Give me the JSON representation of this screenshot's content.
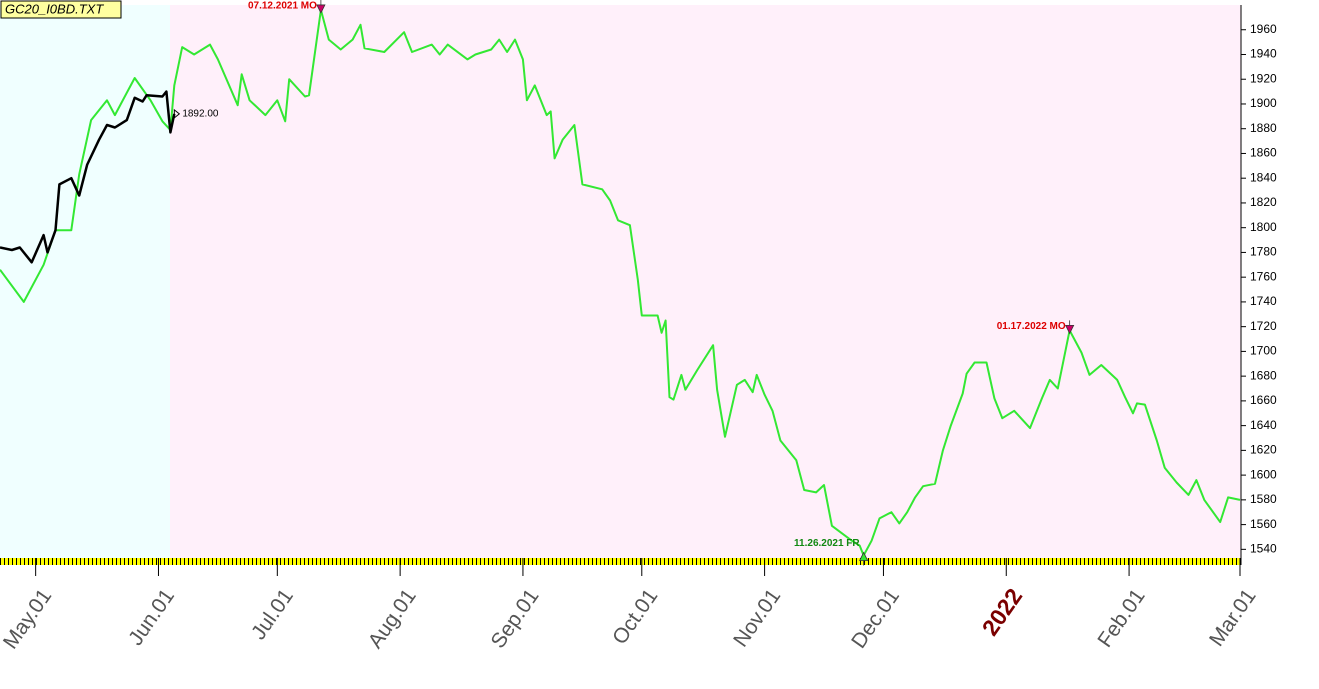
{
  "chart_data": {
    "type": "line",
    "title": "GC20_I0BD.TXT",
    "xlim": [
      "2021-04-22",
      "2022-03-01"
    ],
    "ylim": [
      1533,
      1980
    ],
    "yticks": [
      1540,
      1560,
      1580,
      1600,
      1620,
      1640,
      1660,
      1680,
      1700,
      1720,
      1740,
      1760,
      1780,
      1800,
      1820,
      1840,
      1860,
      1880,
      1900,
      1920,
      1940,
      1960
    ],
    "xticks": [
      {
        "value": "2021-05-01",
        "label": "May.01"
      },
      {
        "value": "2021-06-01",
        "label": "Jun.01"
      },
      {
        "value": "2021-07-01",
        "label": "Jul.01"
      },
      {
        "value": "2021-08-01",
        "label": "Aug.01"
      },
      {
        "value": "2021-09-01",
        "label": "Sep.01"
      },
      {
        "value": "2021-10-01",
        "label": "Oct.01"
      },
      {
        "value": "2021-11-01",
        "label": "Nov.01"
      },
      {
        "value": "2021-12-01",
        "label": "Dec.01"
      },
      {
        "value": "2022-01-01",
        "label": "2022"
      },
      {
        "value": "2022-02-01",
        "label": "Feb.01"
      },
      {
        "value": "2022-03-01",
        "label": "Mar.01"
      }
    ],
    "series": [
      {
        "color": "#33e833",
        "x": [
          "2021-04-22",
          "2021-04-28",
          "2021-05-03",
          "2021-05-06",
          "2021-05-10",
          "2021-05-12",
          "2021-05-15",
          "2021-05-19",
          "2021-05-21",
          "2021-05-26",
          "2021-05-30",
          "2021-06-02",
          "2021-06-04",
          "2021-06-05",
          "2021-06-07",
          "2021-06-10",
          "2021-06-14",
          "2021-06-16",
          "2021-06-21",
          "2021-06-22",
          "2021-06-24",
          "2021-06-28",
          "2021-07-01",
          "2021-07-03",
          "2021-07-04",
          "2021-07-08",
          "2021-07-09",
          "2021-07-12",
          "2021-07-14",
          "2021-07-17",
          "2021-07-20",
          "2021-07-22",
          "2021-07-23",
          "2021-07-28",
          "2021-08-02",
          "2021-08-04",
          "2021-08-09",
          "2021-08-11",
          "2021-08-13",
          "2021-08-18",
          "2021-08-20",
          "2021-08-24",
          "2021-08-26",
          "2021-08-28",
          "2021-08-30",
          "2021-09-01",
          "2021-09-02",
          "2021-09-04",
          "2021-09-07",
          "2021-09-08",
          "2021-09-09",
          "2021-09-11",
          "2021-09-14",
          "2021-09-16",
          "2021-09-21",
          "2021-09-23",
          "2021-09-25",
          "2021-09-28",
          "2021-09-30",
          "2021-10-01",
          "2021-10-05",
          "2021-10-06",
          "2021-10-07",
          "2021-10-08",
          "2021-10-09",
          "2021-10-11",
          "2021-10-12",
          "2021-10-15",
          "2021-10-19",
          "2021-10-20",
          "2021-10-22",
          "2021-10-25",
          "2021-10-27",
          "2021-10-29",
          "2021-10-30",
          "2021-11-01",
          "2021-11-03",
          "2021-11-05",
          "2021-11-09",
          "2021-11-11",
          "2021-11-14",
          "2021-11-16",
          "2021-11-18",
          "2021-11-23",
          "2021-11-25",
          "2021-11-26",
          "2021-11-28",
          "2021-11-30",
          "2021-12-03",
          "2021-12-05",
          "2021-12-07",
          "2021-12-09",
          "2021-12-11",
          "2021-12-14",
          "2021-12-16",
          "2021-12-18",
          "2021-12-21",
          "2021-12-22",
          "2021-12-24",
          "2021-12-27",
          "2021-12-29",
          "2021-12-31",
          "2022-01-03",
          "2022-01-07",
          "2022-01-10",
          "2022-01-12",
          "2022-01-14",
          "2022-01-17",
          "2022-01-20",
          "2022-01-22",
          "2022-01-25",
          "2022-01-29",
          "2022-01-31",
          "2022-02-02",
          "2022-02-03",
          "2022-02-05",
          "2022-02-08",
          "2022-02-10",
          "2022-02-13",
          "2022-02-16",
          "2022-02-18",
          "2022-02-20",
          "2022-02-24",
          "2022-02-26",
          "2022-03-01"
        ],
        "values": [
          1766,
          1740,
          1770,
          1798,
          1798,
          1843,
          1887,
          1903,
          1891,
          1921,
          1903,
          1886,
          1879,
          1915,
          1946,
          1940,
          1948,
          1936,
          1899,
          1924,
          1903,
          1891,
          1903,
          1886,
          1920,
          1906,
          1907,
          1976,
          1952,
          1944,
          1952,
          1964,
          1945,
          1942,
          1958,
          1942,
          1948,
          1940,
          1948,
          1936,
          1940,
          1944,
          1952,
          1942,
          1952,
          1936,
          1903,
          1915,
          1891,
          1894,
          1856,
          1871,
          1883,
          1835,
          1831,
          1822,
          1806,
          1802,
          1758,
          1729,
          1729,
          1715,
          1725,
          1663,
          1661,
          1681,
          1669,
          1685,
          1705,
          1669,
          1631,
          1673,
          1677,
          1667,
          1681,
          1665,
          1652,
          1628,
          1612,
          1588,
          1586,
          1592,
          1559,
          1547,
          1543,
          1535,
          1547,
          1565,
          1570,
          1561,
          1570,
          1582,
          1591,
          1593,
          1620,
          1640,
          1666,
          1682,
          1691,
          1691,
          1662,
          1646,
          1652,
          1638,
          1662,
          1677,
          1670,
          1717,
          1699,
          1681,
          1689,
          1677,
          1663,
          1650,
          1658,
          1657,
          1628,
          1606,
          1594,
          1584,
          1596,
          1580,
          1562,
          1582,
          1580
        ]
      },
      {
        "color": "#000000",
        "x": [
          "2021-04-22",
          "2021-04-25",
          "2021-04-27",
          "2021-04-30",
          "2021-05-03",
          "2021-05-04",
          "2021-05-06",
          "2021-05-07",
          "2021-05-10",
          "2021-05-12",
          "2021-05-14",
          "2021-05-17",
          "2021-05-19",
          "2021-05-21",
          "2021-05-24",
          "2021-05-26",
          "2021-05-28",
          "2021-05-29",
          "2021-06-02",
          "2021-06-03",
          "2021-06-04",
          "2021-06-05"
        ],
        "values": [
          1784,
          1782,
          1784,
          1772,
          1794,
          1780,
          1798,
          1835,
          1840,
          1826,
          1851,
          1871,
          1883,
          1881,
          1887,
          1905,
          1902,
          1907,
          1906,
          1910,
          1877,
          1892
        ],
        "value_labels": [
          null,
          null,
          null,
          null,
          null,
          null,
          null,
          null,
          null,
          null,
          null,
          null,
          null,
          null,
          null,
          null,
          null,
          null,
          null,
          null,
          null,
          "1892.00"
        ]
      }
    ],
    "annotations": [
      {
        "text": "07.12.2021 MO",
        "x": "2021-07-12",
        "value": 1976,
        "color": "#dd0000",
        "marker": "down"
      },
      {
        "text": "11.26.2021 FR",
        "x": "2021-11-26",
        "value": 1535,
        "color": "#118811",
        "marker": "up"
      },
      {
        "text": "01.17.2022 MO",
        "x": "2022-01-17",
        "value": 1717,
        "color": "#dd0000",
        "marker": "down"
      }
    ]
  }
}
